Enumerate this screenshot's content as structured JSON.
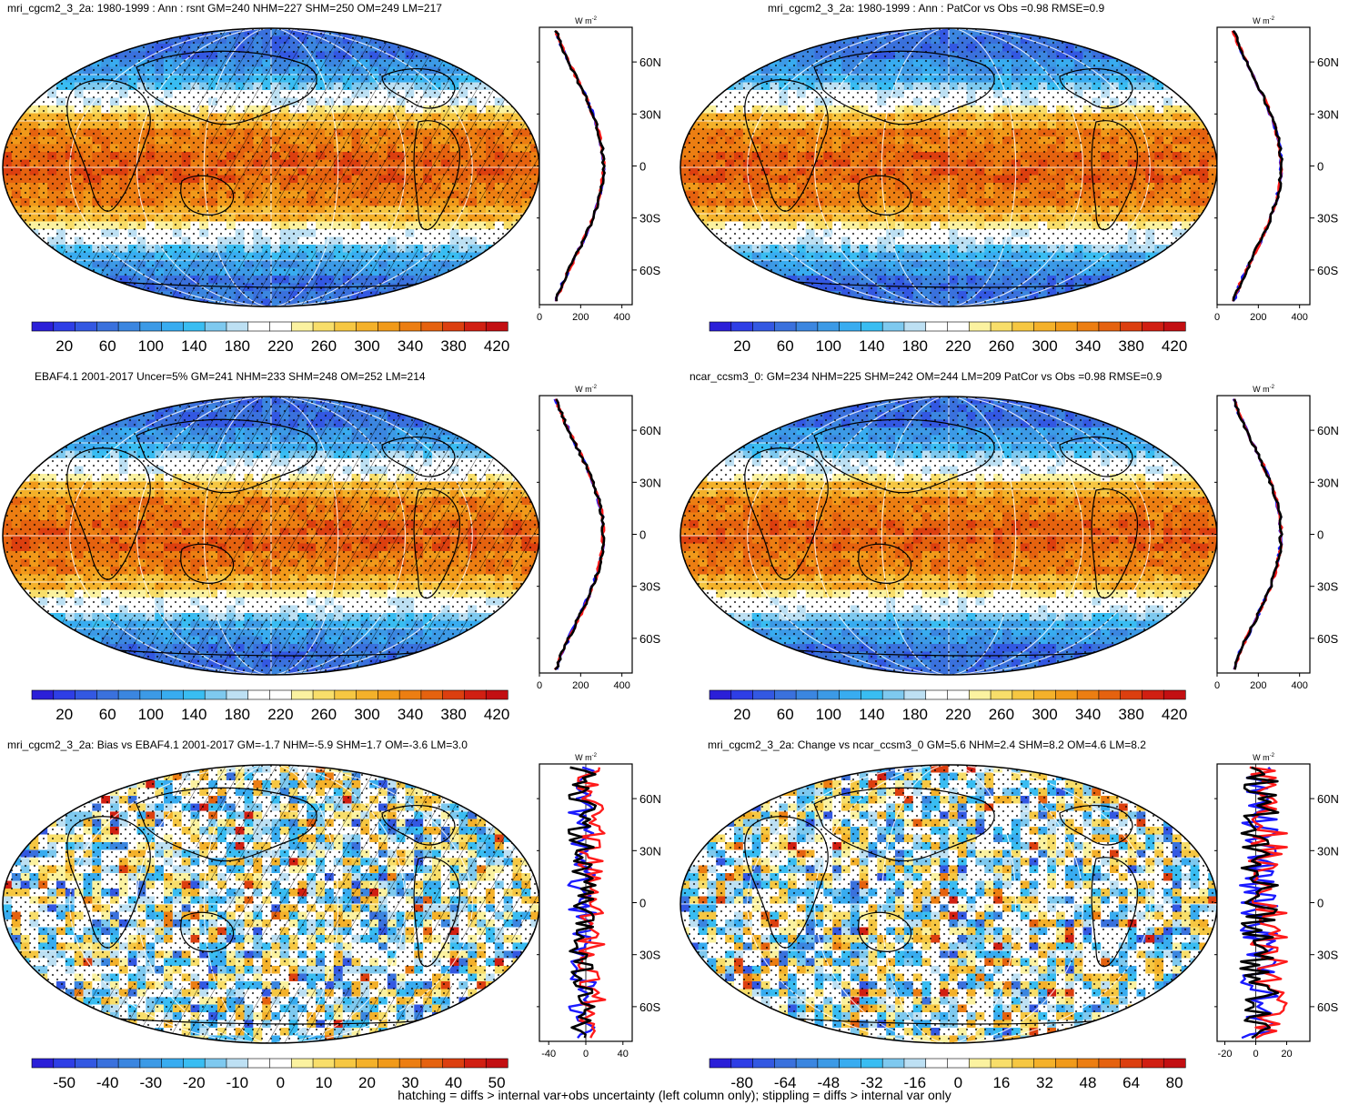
{
  "palette_main": [
    "#2b1fd8",
    "#2e3ee6",
    "#3358e2",
    "#3a71dd",
    "#3b86e0",
    "#3c9ae6",
    "#38acf0",
    "#39bdf2",
    "#7ec9ef",
    "#bde0f3",
    "#ffffff",
    "#ffffff",
    "#fbf2a0",
    "#f8de6a",
    "#f6c742",
    "#f4b12a",
    "#f19a1a",
    "#ec7e12",
    "#e5620f",
    "#dc3f0f",
    "#d11f12",
    "#c30f12"
  ],
  "palette_diff": [
    "#2b1fd8",
    "#2e3ee6",
    "#3358e2",
    "#3a71dd",
    "#3b86e0",
    "#3c9ae6",
    "#38acf0",
    "#39bdf2",
    "#7ec9ef",
    "#bde0f3",
    "#ffffff",
    "#ffffff",
    "#fbf2a0",
    "#f8de6a",
    "#f6c742",
    "#f4b12a",
    "#f19a1a",
    "#ec7e12",
    "#e5620f",
    "#dc3f0f",
    "#d11f12",
    "#c30f12"
  ],
  "profile_colors": {
    "obs": "#1a1aff",
    "model": "#ff1a1a",
    "mean": "#000000"
  },
  "profile_units": "W m",
  "profile_units_sup": "-2",
  "lat_labels": [
    "60N",
    "30N",
    "0",
    "30S",
    "60S"
  ],
  "panels": [
    {
      "title": "mri_cgcm2_3_2a: 1980-1999 : Ann : rsnt GM=240 NHM=227 SHM=250 OM=249 LM=217",
      "cbar_labels": [
        "20",
        "60",
        "100",
        "140",
        "180",
        "220",
        "260",
        "300",
        "340",
        "380",
        "420"
      ],
      "profile_ticks": [
        "0",
        "200",
        "400"
      ],
      "profile_xlim": [
        0,
        450
      ],
      "kind": "mean"
    },
    {
      "title": "mri_cgcm2_3_2a: 1980-1999 : Ann : PatCor vs Obs =0.98 RMSE=0.9",
      "cbar_labels": [
        "20",
        "60",
        "100",
        "140",
        "180",
        "220",
        "260",
        "300",
        "340",
        "380",
        "420"
      ],
      "profile_ticks": [
        "0",
        "200",
        "400"
      ],
      "profile_xlim": [
        0,
        450
      ],
      "kind": "mean"
    },
    {
      "title": "EBAF4.1 2001-2017 Uncer=5% GM=241 NHM=233 SHM=248 OM=252 LM=214",
      "cbar_labels": [
        "20",
        "60",
        "100",
        "140",
        "180",
        "220",
        "260",
        "300",
        "340",
        "380",
        "420"
      ],
      "profile_ticks": [
        "0",
        "200",
        "400"
      ],
      "profile_xlim": [
        0,
        450
      ],
      "kind": "mean"
    },
    {
      "title": "ncar_ccsm3_0: GM=234 NHM=225 SHM=242 OM=244 LM=209 PatCor vs Obs =0.98 RMSE=0.9",
      "cbar_labels": [
        "20",
        "60",
        "100",
        "140",
        "180",
        "220",
        "260",
        "300",
        "340",
        "380",
        "420"
      ],
      "profile_ticks": [
        "0",
        "200",
        "400"
      ],
      "profile_xlim": [
        0,
        450
      ],
      "kind": "mean"
    },
    {
      "title": "mri_cgcm2_3_2a: Bias vs EBAF4.1 2001-2017 GM=-1.7 NHM=-5.9 SHM=1.7 OM=-3.6 LM=3.0",
      "cbar_labels": [
        "-50",
        "-40",
        "-30",
        "-20",
        "-10",
        "0",
        "10",
        "20",
        "30",
        "40",
        "50"
      ],
      "profile_ticks": [
        "-40",
        "0",
        "40"
      ],
      "profile_xlim": [
        -50,
        50
      ],
      "kind": "bias"
    },
    {
      "title": "mri_cgcm2_3_2a: Change vs ncar_ccsm3_0 GM=5.6 NHM=2.4 SHM=8.2 OM=4.6 LM=8.2",
      "cbar_labels": [
        "-80",
        "-64",
        "-48",
        "-32",
        "-16",
        "0",
        "16",
        "32",
        "48",
        "64",
        "80"
      ],
      "profile_ticks": [
        "-20",
        "0",
        "20"
      ],
      "profile_xlim": [
        -25,
        35
      ],
      "kind": "change"
    }
  ],
  "footer": "hatching = diffs > internal var+obs uncertainty (left column only); stippling = diffs > internal var only",
  "chart_data": [
    {
      "type": "heatmap",
      "title": "mri_cgcm2_3_2a: 1980-1999 : Ann : rsnt GM=240 NHM=227 SHM=250 OM=249 LM=217",
      "colorbar": [
        20,
        60,
        100,
        140,
        180,
        220,
        260,
        300,
        340,
        380,
        420
      ]
    },
    {
      "type": "heatmap",
      "title": "mri_cgcm2_3_2a: 1980-1999 : Ann : PatCor vs Obs =0.98 RMSE=0.9",
      "colorbar": [
        20,
        60,
        100,
        140,
        180,
        220,
        260,
        300,
        340,
        380,
        420
      ]
    },
    {
      "type": "heatmap",
      "title": "EBAF4.1 2001-2017 Uncer=5% GM=241 NHM=233 SHM=248 OM=252 LM=214",
      "colorbar": [
        20,
        60,
        100,
        140,
        180,
        220,
        260,
        300,
        340,
        380,
        420
      ]
    },
    {
      "type": "heatmap",
      "title": "ncar_ccsm3_0: GM=234 NHM=225 SHM=242 OM=244 LM=209 PatCor vs Obs =0.98 RMSE=0.9",
      "colorbar": [
        20,
        60,
        100,
        140,
        180,
        220,
        260,
        300,
        340,
        380,
        420
      ]
    },
    {
      "type": "heatmap",
      "title": "mri_cgcm2_3_2a: Bias vs EBAF4.1 2001-2017 GM=-1.7 NHM=-5.9 SHM=1.7 OM=-3.6 LM=3.0",
      "colorbar": [
        -50,
        -40,
        -30,
        -20,
        -10,
        0,
        10,
        20,
        30,
        40,
        50
      ]
    },
    {
      "type": "heatmap",
      "title": "mri_cgcm2_3_2a: Change vs ncar_ccsm3_0 GM=5.6 NHM=2.4 SHM=8.2 OM=4.6 LM=8.2",
      "colorbar": [
        -80,
        -64,
        -48,
        -32,
        -16,
        0,
        16,
        32,
        48,
        64,
        80
      ]
    }
  ]
}
